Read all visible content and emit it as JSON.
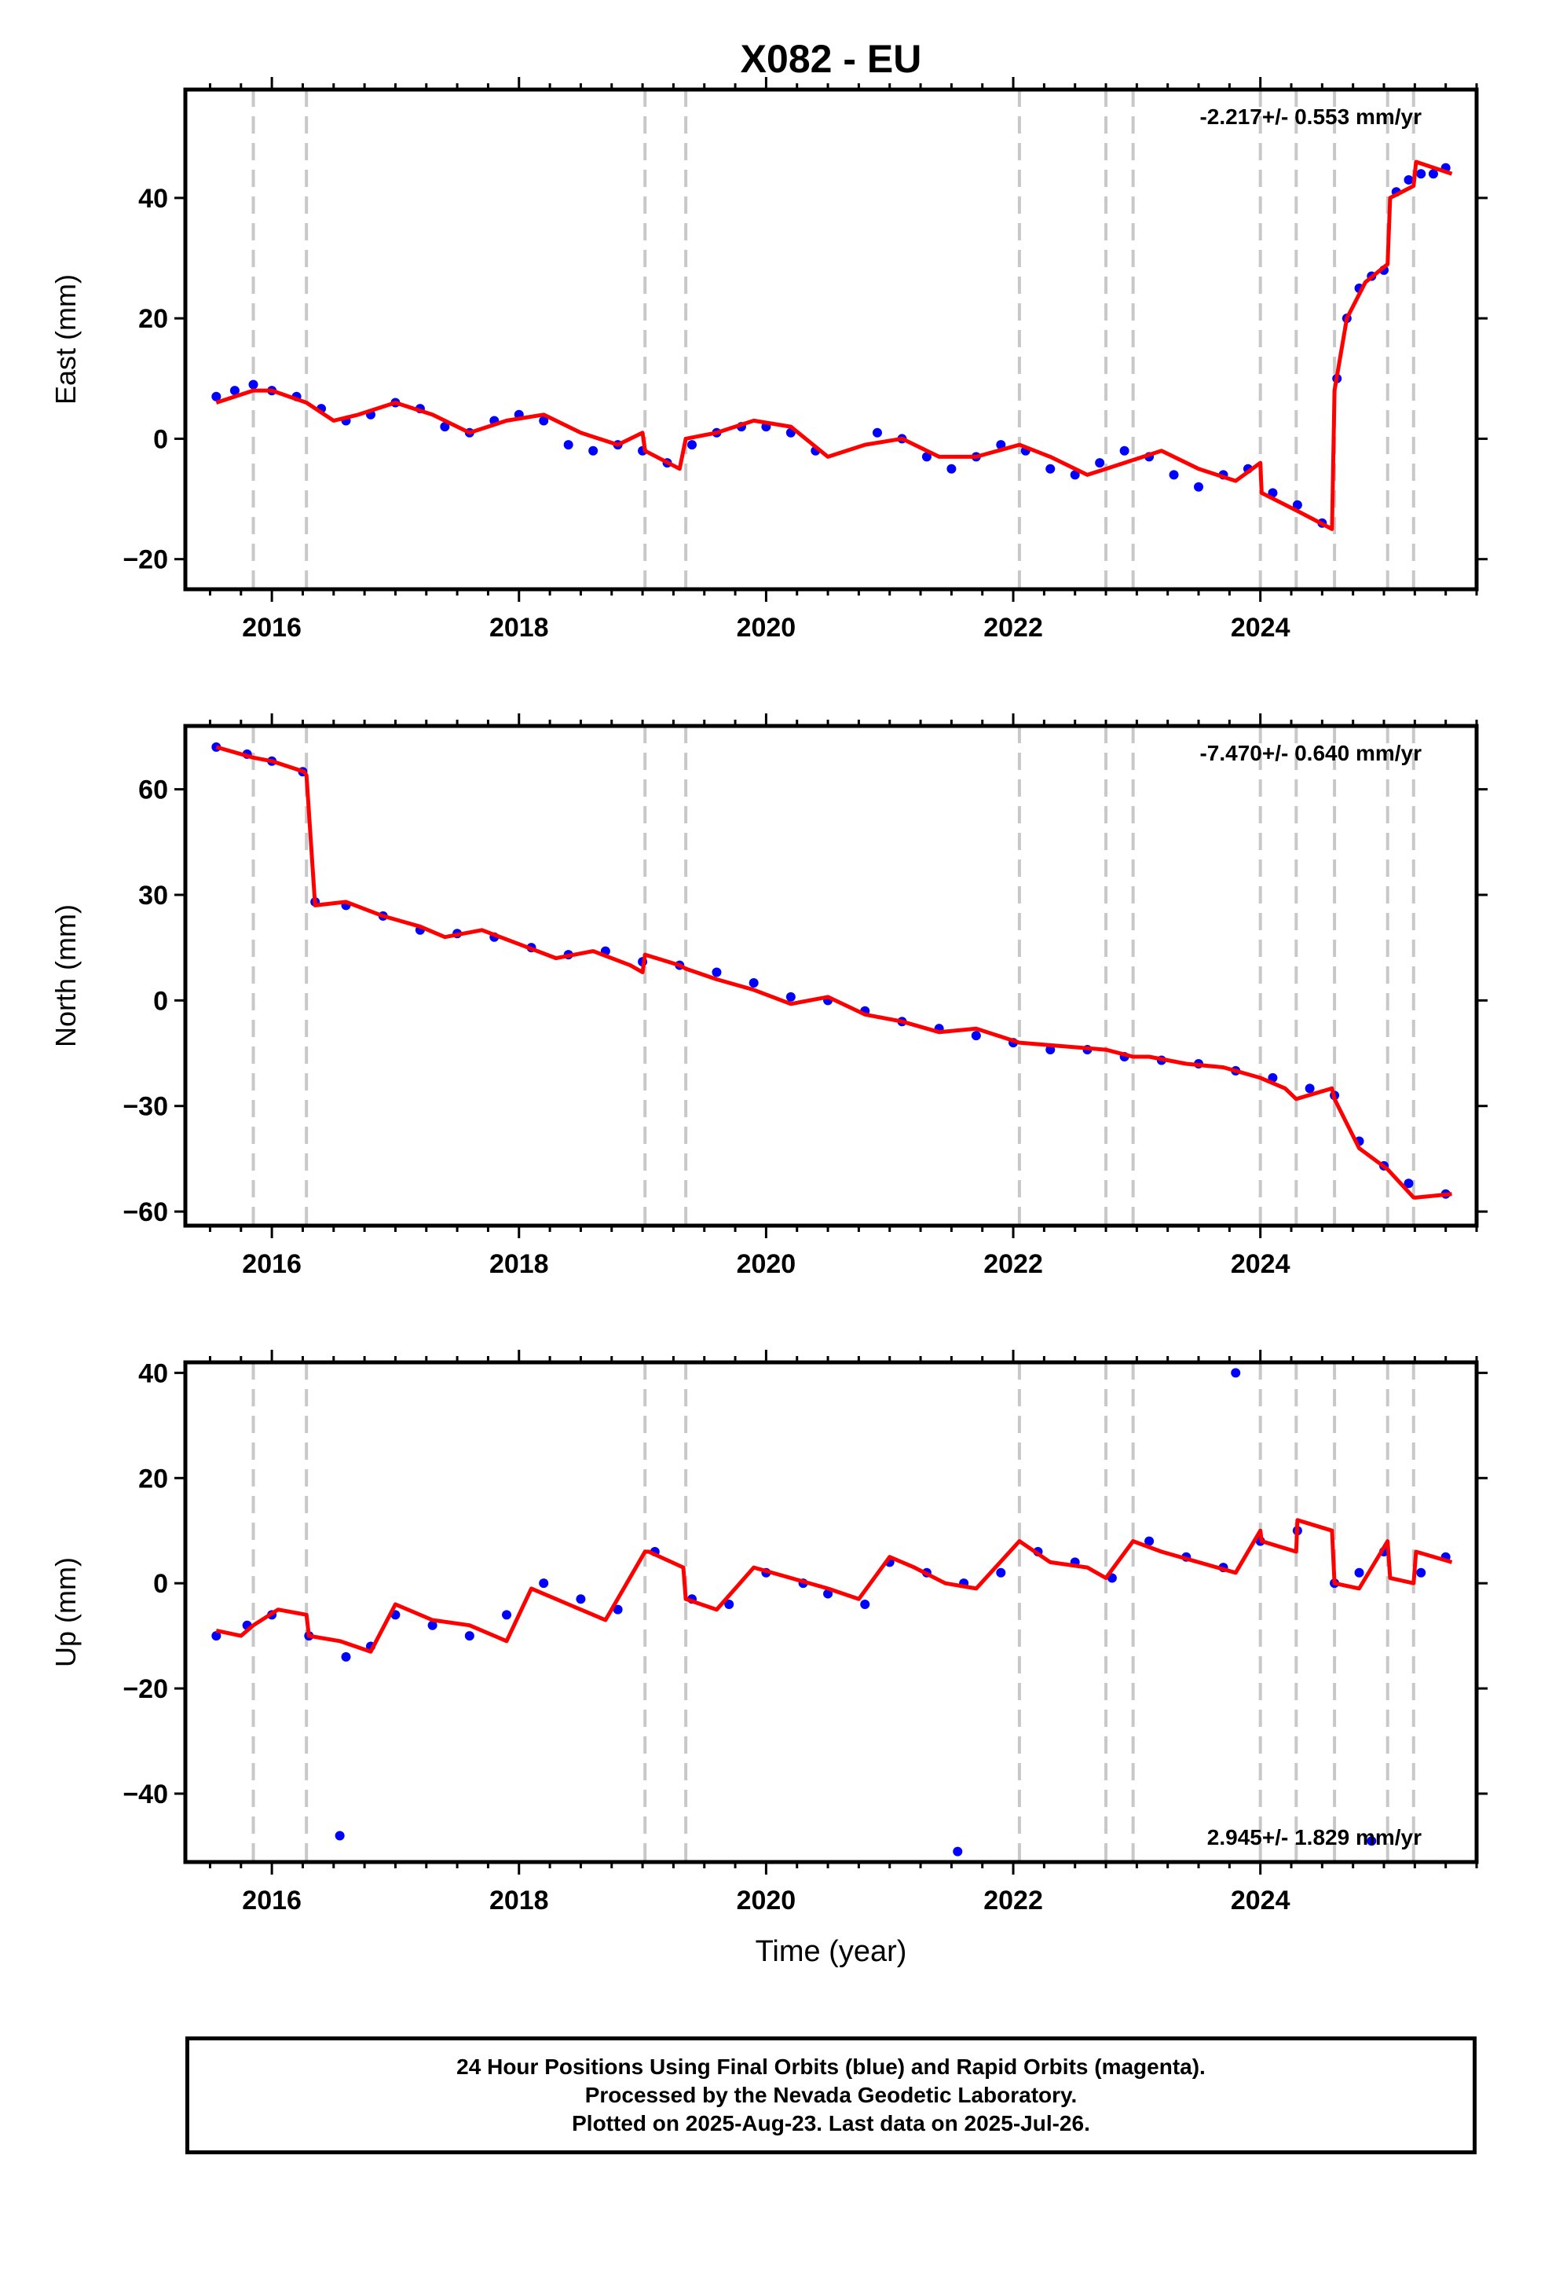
{
  "chart_data": [
    {
      "type": "scatter",
      "title": "X082 - EU",
      "ylabel": "East (mm)",
      "xlabel": "",
      "xlim": [
        2015.3,
        2025.75
      ],
      "ylim": [
        -25,
        58
      ],
      "yticks": [
        -20,
        0,
        20,
        40
      ],
      "ytick_labels": [
        "−20",
        "0",
        "20",
        "40"
      ],
      "xticks": [
        2016,
        2018,
        2020,
        2022,
        2024
      ],
      "xtick_labels": [
        "2016",
        "2018",
        "2020",
        "2022",
        "2024"
      ],
      "rate_label": "-2.217+/- 0.553 mm/yr",
      "rate_position": "top-right",
      "event_lines_x": [
        2015.85,
        2016.28,
        2019.02,
        2019.35,
        2022.05,
        2022.75,
        2022.97,
        2024.0,
        2024.29,
        2024.6,
        2025.03,
        2025.24
      ],
      "series": [
        {
          "color": "#0000ff",
          "marker": "dot",
          "x": [
            2015.55,
            2015.7,
            2015.85,
            2016.0,
            2016.2,
            2016.4,
            2016.6,
            2016.8,
            2017.0,
            2017.2,
            2017.4,
            2017.6,
            2017.8,
            2018.0,
            2018.2,
            2018.4,
            2018.6,
            2018.8,
            2019.0,
            2019.2,
            2019.4,
            2019.6,
            2019.8,
            2020.0,
            2020.2,
            2020.4,
            2020.9,
            2021.1,
            2021.3,
            2021.5,
            2021.7,
            2021.9,
            2022.1,
            2022.3,
            2022.5,
            2022.7,
            2022.9,
            2023.1,
            2023.3,
            2023.5,
            2023.7,
            2023.9,
            2024.1,
            2024.3,
            2024.5,
            2024.62,
            2024.7,
            2024.8,
            2024.9,
            2025.0,
            2025.1,
            2025.2,
            2025.3,
            2025.4,
            2025.5
          ],
          "y": [
            7,
            8,
            9,
            8,
            7,
            5,
            3,
            4,
            6,
            5,
            2,
            1,
            3,
            4,
            3,
            -1,
            -2,
            -1,
            -2,
            -4,
            -1,
            1,
            2,
            2,
            1,
            -2,
            1,
            0,
            -3,
            -5,
            -3,
            -1,
            -2,
            -5,
            -6,
            -4,
            -2,
            -3,
            -6,
            -8,
            -6,
            -5,
            -9,
            -11,
            -14,
            10,
            20,
            25,
            27,
            28,
            41,
            43,
            44,
            44,
            45
          ]
        },
        {
          "color": "#ff0000",
          "marker": "line",
          "x": [
            2015.55,
            2015.85,
            2016.0,
            2016.28,
            2016.5,
            2016.7,
            2017.0,
            2017.3,
            2017.6,
            2017.9,
            2018.2,
            2018.5,
            2018.8,
            2019.0,
            2019.02,
            2019.3,
            2019.35,
            2019.6,
            2019.9,
            2020.2,
            2020.5,
            2020.8,
            2021.1,
            2021.4,
            2021.7,
            2022.05,
            2022.3,
            2022.6,
            2022.9,
            2023.2,
            2023.5,
            2023.8,
            2024.0,
            2024.01,
            2024.3,
            2024.58,
            2024.6,
            2024.7,
            2024.85,
            2025.03,
            2025.05,
            2025.24,
            2025.26,
            2025.55
          ],
          "y": [
            6,
            8,
            8,
            6,
            3,
            4,
            6,
            4,
            1,
            3,
            4,
            1,
            -1,
            1,
            -2,
            -5,
            0,
            1,
            3,
            2,
            -3,
            -1,
            0,
            -3,
            -3,
            -1,
            -3,
            -6,
            -4,
            -2,
            -5,
            -7,
            -4,
            -9,
            -12,
            -15,
            8,
            20,
            26,
            29,
            40,
            42,
            46,
            44
          ]
        }
      ]
    },
    {
      "type": "scatter",
      "title": "",
      "ylabel": "North (mm)",
      "xlabel": "",
      "xlim": [
        2015.3,
        2025.75
      ],
      "ylim": [
        -64,
        78
      ],
      "yticks": [
        -60,
        -30,
        0,
        30,
        60
      ],
      "ytick_labels": [
        "−60",
        "−30",
        "0",
        "30",
        "60"
      ],
      "xticks": [
        2016,
        2018,
        2020,
        2022,
        2024
      ],
      "xtick_labels": [
        "2016",
        "2018",
        "2020",
        "2022",
        "2024"
      ],
      "rate_label": "-7.470+/- 0.640 mm/yr",
      "rate_position": "top-right",
      "event_lines_x": [
        2015.85,
        2016.28,
        2019.02,
        2019.35,
        2022.05,
        2022.75,
        2022.97,
        2024.0,
        2024.29,
        2024.6,
        2025.03,
        2025.24
      ],
      "series": [
        {
          "color": "#0000ff",
          "marker": "dot",
          "x": [
            2015.55,
            2015.8,
            2016.0,
            2016.25,
            2016.35,
            2016.6,
            2016.9,
            2017.2,
            2017.5,
            2017.8,
            2018.1,
            2018.4,
            2018.7,
            2019.0,
            2019.3,
            2019.6,
            2019.9,
            2020.2,
            2020.5,
            2020.8,
            2021.1,
            2021.4,
            2021.7,
            2022.0,
            2022.3,
            2022.6,
            2022.9,
            2023.2,
            2023.5,
            2023.8,
            2024.1,
            2024.4,
            2024.6,
            2024.8,
            2025.0,
            2025.2,
            2025.5
          ],
          "y": [
            72,
            70,
            68,
            65,
            28,
            27,
            24,
            20,
            19,
            18,
            15,
            13,
            14,
            11,
            10,
            8,
            5,
            1,
            0,
            -3,
            -6,
            -8,
            -10,
            -12,
            -14,
            -14,
            -16,
            -17,
            -18,
            -20,
            -22,
            -25,
            -27,
            -40,
            -47,
            -52,
            -55
          ]
        },
        {
          "color": "#ff0000",
          "marker": "line",
          "x": [
            2015.55,
            2015.85,
            2016.0,
            2016.26,
            2016.28,
            2016.35,
            2016.6,
            2016.9,
            2017.2,
            2017.4,
            2017.7,
            2018.0,
            2018.3,
            2018.6,
            2018.9,
            2019.0,
            2019.02,
            2019.3,
            2019.35,
            2019.6,
            2019.9,
            2020.2,
            2020.5,
            2020.8,
            2021.1,
            2021.4,
            2021.7,
            2022.05,
            2022.4,
            2022.75,
            2022.97,
            2023.1,
            2023.4,
            2023.7,
            2024.0,
            2024.2,
            2024.29,
            2024.58,
            2024.6,
            2024.8,
            2025.03,
            2025.24,
            2025.26,
            2025.55
          ],
          "y": [
            72,
            69,
            68,
            65,
            64,
            27,
            28,
            24,
            21,
            18,
            20,
            16,
            12,
            14,
            10,
            8,
            13,
            10,
            9,
            6,
            3,
            -1,
            1,
            -4,
            -6,
            -9,
            -8,
            -12,
            -13,
            -14,
            -16,
            -16,
            -18,
            -19,
            -22,
            -25,
            -28,
            -25,
            -28,
            -42,
            -48,
            -56,
            -56,
            -55
          ]
        }
      ]
    },
    {
      "type": "scatter",
      "title": "",
      "ylabel": "Up (mm)",
      "xlabel": "Time (year)",
      "xlim": [
        2015.3,
        2025.75
      ],
      "ylim": [
        -53,
        42
      ],
      "yticks": [
        -40,
        -20,
        0,
        20,
        40
      ],
      "ytick_labels": [
        "−40",
        "−20",
        "0",
        "20",
        "40"
      ],
      "xticks": [
        2016,
        2018,
        2020,
        2022,
        2024
      ],
      "xtick_labels": [
        "2016",
        "2018",
        "2020",
        "2022",
        "2024"
      ],
      "rate_label": "2.945+/- 1.829 mm/yr",
      "rate_position": "bottom-right",
      "event_lines_x": [
        2015.85,
        2016.28,
        2019.02,
        2019.35,
        2022.05,
        2022.75,
        2022.97,
        2024.0,
        2024.29,
        2024.6,
        2025.03,
        2025.24
      ],
      "series": [
        {
          "color": "#0000ff",
          "marker": "dot",
          "x": [
            2015.55,
            2015.8,
            2016.0,
            2016.3,
            2016.6,
            2016.8,
            2017.0,
            2017.3,
            2017.6,
            2017.9,
            2018.2,
            2018.5,
            2018.8,
            2019.1,
            2019.4,
            2019.7,
            2020.0,
            2020.3,
            2020.5,
            2020.8,
            2021.0,
            2021.3,
            2021.6,
            2021.9,
            2022.2,
            2022.5,
            2022.8,
            2023.1,
            2023.4,
            2023.7,
            2024.0,
            2024.3,
            2024.6,
            2024.8,
            2025.0,
            2025.3,
            2025.5,
            2023.8,
            2021.55,
            2016.55,
            2024.9
          ],
          "y": [
            -10,
            -8,
            -6,
            -10,
            -14,
            -12,
            -6,
            -8,
            -10,
            -6,
            0,
            -3,
            -5,
            6,
            -3,
            -4,
            2,
            0,
            -2,
            -4,
            4,
            2,
            0,
            2,
            6,
            4,
            1,
            8,
            5,
            3,
            8,
            10,
            0,
            2,
            6,
            2,
            5,
            40,
            -51,
            -48,
            -49
          ]
        },
        {
          "color": "#ff0000",
          "marker": "line",
          "x": [
            2015.55,
            2015.75,
            2015.85,
            2016.05,
            2016.28,
            2016.3,
            2016.55,
            2016.8,
            2017.0,
            2017.3,
            2017.6,
            2017.9,
            2018.1,
            2018.4,
            2018.7,
            2019.02,
            2019.05,
            2019.33,
            2019.35,
            2019.6,
            2019.9,
            2020.2,
            2020.5,
            2020.75,
            2021.0,
            2021.2,
            2021.45,
            2021.7,
            2022.05,
            2022.3,
            2022.6,
            2022.75,
            2022.97,
            2023.2,
            2023.5,
            2023.8,
            2024.0,
            2024.01,
            2024.29,
            2024.3,
            2024.58,
            2024.6,
            2024.8,
            2025.03,
            2025.05,
            2025.24,
            2025.26,
            2025.55
          ],
          "y": [
            -9,
            -10,
            -8,
            -5,
            -6,
            -10,
            -11,
            -13,
            -4,
            -7,
            -8,
            -11,
            -1,
            -4,
            -7,
            6,
            6,
            3,
            -3,
            -5,
            3,
            1,
            -1,
            -3,
            5,
            3,
            0,
            -1,
            8,
            4,
            3,
            1,
            8,
            6,
            4,
            2,
            10,
            8,
            6,
            12,
            10,
            0,
            -1,
            8,
            1,
            0,
            6,
            4
          ]
        }
      ]
    }
  ],
  "caption": {
    "line1": "24 Hour Positions Using Final Orbits (blue) and Rapid Orbits (magenta).",
    "line2": "Processed by the Nevada Geodetic Laboratory.",
    "line3": "Plotted on 2025-Aug-23. Last data on 2025-Jul-26."
  }
}
